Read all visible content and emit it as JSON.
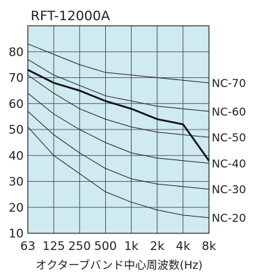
{
  "chart_data": {
    "type": "line",
    "title": "RFT-12000A",
    "xlabel": "オクターブバンド中心周波数(Hz)",
    "ylabel": "",
    "categories": [
      "63",
      "125",
      "250",
      "500",
      "1k",
      "2k",
      "4k",
      "8k"
    ],
    "ylim": [
      10,
      90
    ],
    "yticks": [
      10,
      20,
      30,
      40,
      50,
      60,
      70,
      80
    ],
    "grid": true,
    "plot_bg": "#cfeaf0",
    "series": [
      {
        "name": "",
        "values": [
          73,
          68,
          65,
          61,
          58,
          54,
          52,
          38
        ]
      }
    ],
    "reference_curves": [
      {
        "name": "NC-70",
        "values": [
          83,
          79,
          75,
          72,
          71,
          70,
          69,
          68
        ]
      },
      {
        "name": "NC-60",
        "values": [
          77,
          71,
          67,
          63,
          61,
          59,
          58,
          57
        ]
      },
      {
        "name": "NC-50",
        "values": [
          71,
          64,
          58,
          54,
          51,
          49,
          48,
          47
        ]
      },
      {
        "name": "NC-40",
        "values": [
          64,
          56,
          50,
          45,
          41,
          39,
          38,
          37
        ]
      },
      {
        "name": "NC-30",
        "values": [
          57,
          48,
          41,
          35,
          31,
          29,
          28,
          27
        ]
      },
      {
        "name": "NC-20",
        "values": [
          51,
          40,
          33,
          26,
          22,
          19,
          17,
          16
        ]
      }
    ]
  }
}
